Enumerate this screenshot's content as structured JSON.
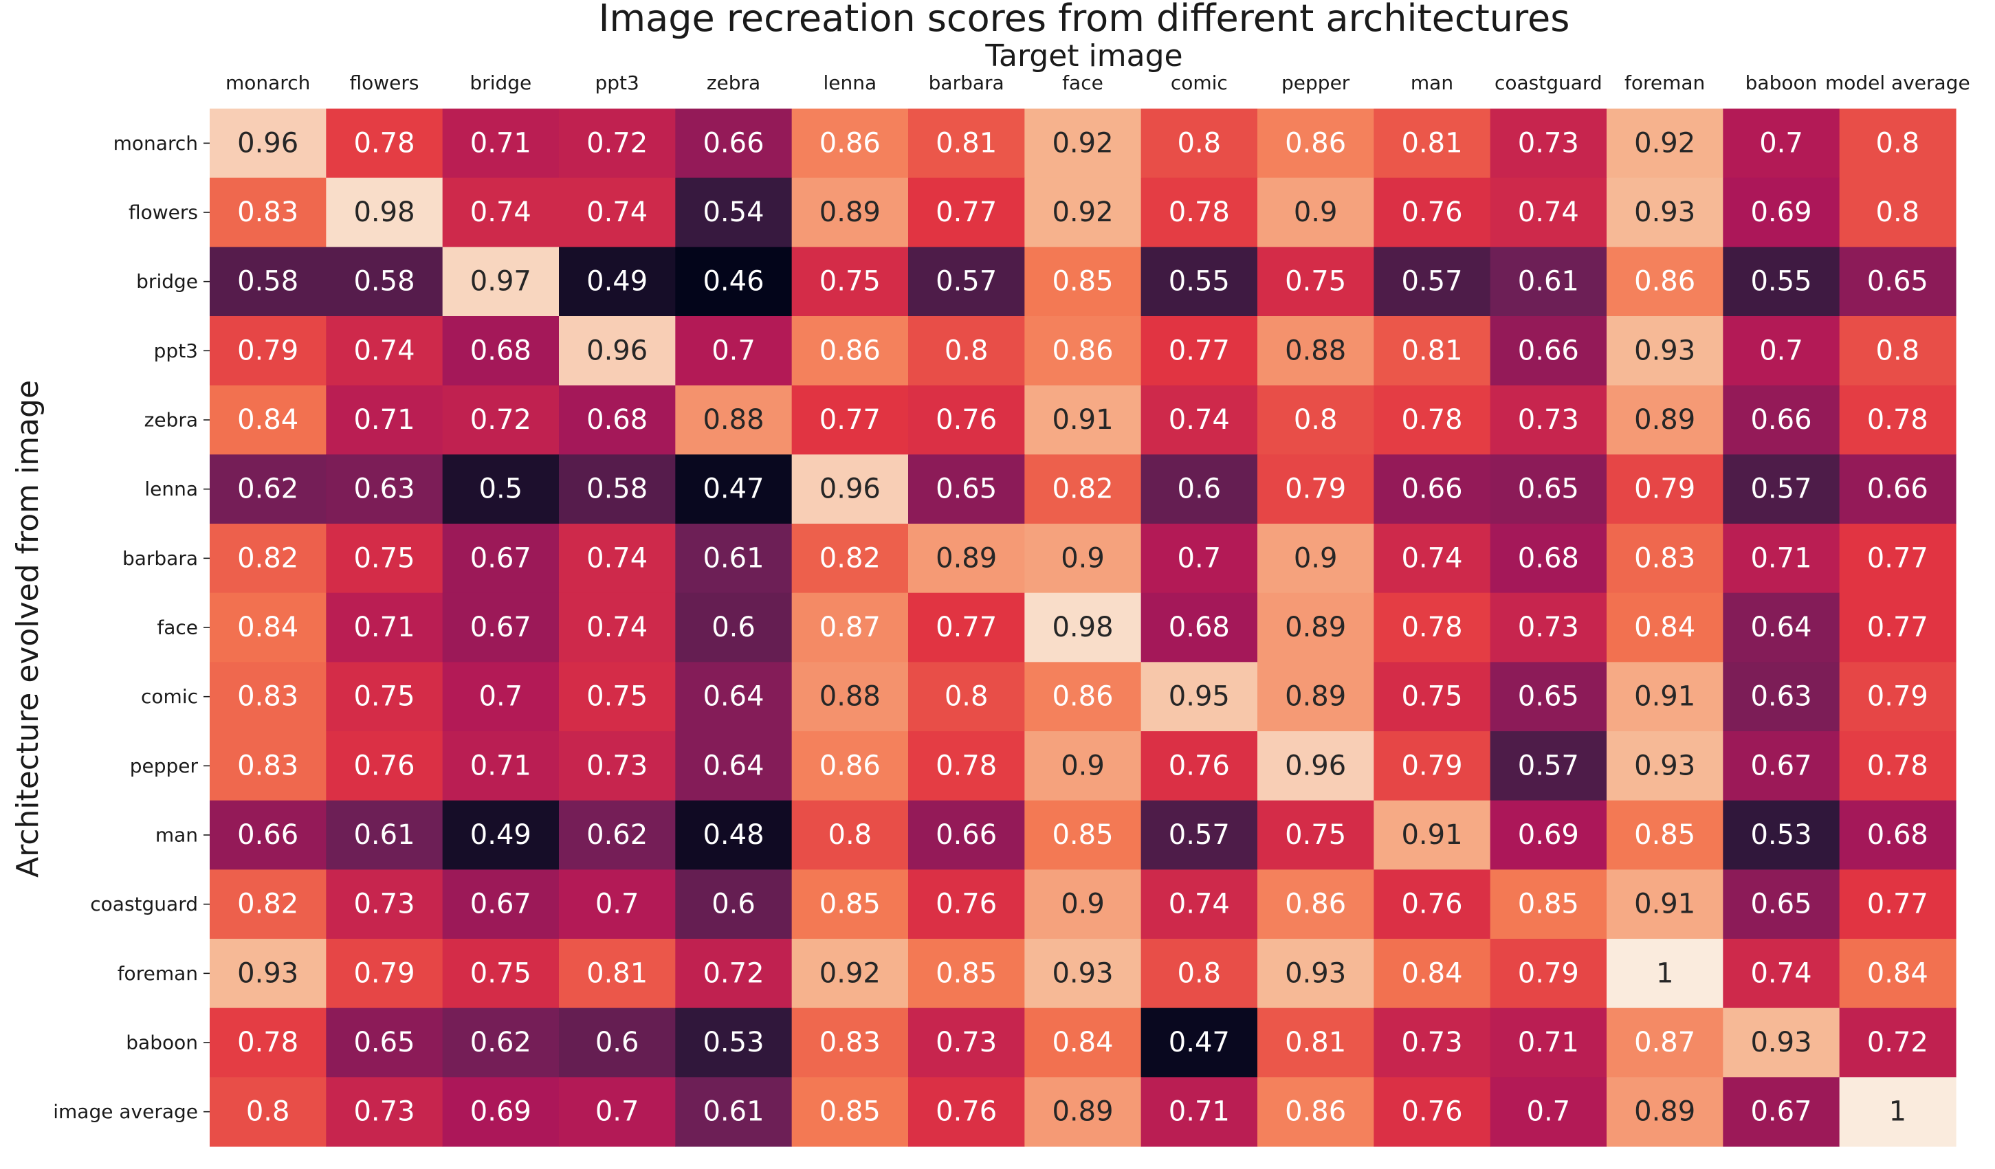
{
  "chart_data": {
    "type": "heatmap",
    "title": "Image recreation scores from different architectures",
    "xlabel": "Target image",
    "ylabel": "Architecture evolved from image",
    "x": [
      "monarch",
      "flowers",
      "bridge",
      "ppt3",
      "zebra",
      "lenna",
      "barbara",
      "face",
      "comic",
      "pepper",
      "man",
      "coastguard",
      "foreman",
      "baboon",
      "model average"
    ],
    "y": [
      "monarch",
      "flowers",
      "bridge",
      "ppt3",
      "zebra",
      "lenna",
      "barbara",
      "face",
      "comic",
      "pepper",
      "man",
      "coastguard",
      "foreman",
      "baboon",
      "image average"
    ],
    "values": [
      [
        0.96,
        0.78,
        0.71,
        0.72,
        0.66,
        0.86,
        0.81,
        0.92,
        0.8,
        0.86,
        0.81,
        0.73,
        0.92,
        0.7,
        0.8
      ],
      [
        0.83,
        0.98,
        0.74,
        0.74,
        0.54,
        0.89,
        0.77,
        0.92,
        0.78,
        0.9,
        0.76,
        0.74,
        0.93,
        0.69,
        0.8
      ],
      [
        0.58,
        0.58,
        0.97,
        0.49,
        0.46,
        0.75,
        0.57,
        0.85,
        0.55,
        0.75,
        0.57,
        0.61,
        0.86,
        0.55,
        0.65
      ],
      [
        0.79,
        0.74,
        0.68,
        0.96,
        0.7,
        0.86,
        0.8,
        0.86,
        0.77,
        0.88,
        0.81,
        0.66,
        0.93,
        0.7,
        0.8
      ],
      [
        0.84,
        0.71,
        0.72,
        0.68,
        0.88,
        0.77,
        0.76,
        0.91,
        0.74,
        0.8,
        0.78,
        0.73,
        0.89,
        0.66,
        0.78
      ],
      [
        0.62,
        0.63,
        0.5,
        0.58,
        0.47,
        0.96,
        0.65,
        0.82,
        0.6,
        0.79,
        0.66,
        0.65,
        0.79,
        0.57,
        0.66
      ],
      [
        0.82,
        0.75,
        0.67,
        0.74,
        0.61,
        0.82,
        0.89,
        0.9,
        0.7,
        0.9,
        0.74,
        0.68,
        0.83,
        0.71,
        0.77
      ],
      [
        0.84,
        0.71,
        0.67,
        0.74,
        0.6,
        0.87,
        0.77,
        0.98,
        0.68,
        0.89,
        0.78,
        0.73,
        0.84,
        0.64,
        0.77
      ],
      [
        0.83,
        0.75,
        0.7,
        0.75,
        0.64,
        0.88,
        0.8,
        0.86,
        0.95,
        0.89,
        0.75,
        0.65,
        0.91,
        0.63,
        0.79
      ],
      [
        0.83,
        0.76,
        0.71,
        0.73,
        0.64,
        0.86,
        0.78,
        0.9,
        0.76,
        0.96,
        0.79,
        0.57,
        0.93,
        0.67,
        0.78
      ],
      [
        0.66,
        0.61,
        0.49,
        0.62,
        0.48,
        0.8,
        0.66,
        0.85,
        0.57,
        0.75,
        0.91,
        0.69,
        0.85,
        0.53,
        0.68
      ],
      [
        0.82,
        0.73,
        0.67,
        0.7,
        0.6,
        0.85,
        0.76,
        0.9,
        0.74,
        0.86,
        0.76,
        0.85,
        0.91,
        0.65,
        0.77
      ],
      [
        0.93,
        0.79,
        0.75,
        0.81,
        0.72,
        0.92,
        0.85,
        0.93,
        0.8,
        0.93,
        0.84,
        0.79,
        1,
        0.74,
        0.84
      ],
      [
        0.78,
        0.65,
        0.62,
        0.6,
        0.53,
        0.83,
        0.73,
        0.84,
        0.47,
        0.81,
        0.73,
        0.71,
        0.87,
        0.93,
        0.72
      ],
      [
        0.8,
        0.73,
        0.69,
        0.7,
        0.61,
        0.85,
        0.76,
        0.89,
        0.71,
        0.86,
        0.76,
        0.7,
        0.89,
        0.67,
        1
      ]
    ],
    "vmin": 0.46,
    "vmax": 1,
    "colormap": [
      "#03051a",
      "#35193e",
      "#701f57",
      "#ad1759",
      "#e13342",
      "#f37651",
      "#f6b48f",
      "#faebdd"
    ],
    "x_axis_position": "top",
    "grid": false,
    "legend": "none"
  }
}
